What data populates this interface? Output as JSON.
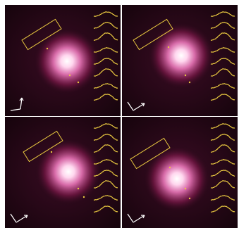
{
  "figure": {
    "colors": {
      "background": "#1a0510",
      "glow_center": "#ffffff",
      "glow_mid": "#e070b0",
      "glow_outer": "#7a1848",
      "overlay": "#e8c840",
      "compass": "#ffffff"
    },
    "panels": [
      {
        "name": "top-left-panel",
        "compass_icon": "compass-up-arrow-icon",
        "profile_count": 8
      },
      {
        "name": "top-right-panel",
        "compass_icon": "compass-upright-arrow-icon",
        "profile_count": 8
      },
      {
        "name": "bottom-left-panel",
        "compass_icon": "compass-downright-arrow-icon",
        "profile_count": 8
      },
      {
        "name": "bottom-right-panel",
        "compass_icon": "compass-upright-arrow-icon",
        "profile_count": 8
      }
    ]
  }
}
